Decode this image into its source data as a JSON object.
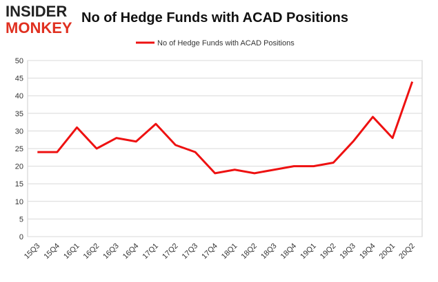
{
  "logo": {
    "top": "INSIDER",
    "bottom": "MONKEY"
  },
  "chart_data": {
    "type": "line",
    "title": "No of Hedge Funds with ACAD Positions",
    "categories": [
      "15Q3",
      "15Q4",
      "16Q1",
      "16Q2",
      "16Q3",
      "16Q4",
      "17Q1",
      "17Q2",
      "17Q3",
      "17Q4",
      "18Q1",
      "18Q2",
      "18Q3",
      "18Q4",
      "19Q1",
      "19Q2",
      "19Q3",
      "19Q4",
      "20Q1",
      "20Q2"
    ],
    "series": [
      {
        "name": "No of Hedge Funds with ACAD Positions",
        "color": "#ee1111",
        "values": [
          24,
          24,
          31,
          25,
          28,
          27,
          32,
          26,
          24,
          18,
          19,
          18,
          19,
          20,
          20,
          21,
          27,
          34,
          28,
          44
        ]
      }
    ],
    "ylim": [
      0,
      50
    ],
    "yticks": [
      0,
      5,
      10,
      15,
      20,
      25,
      30,
      35,
      40,
      45,
      50
    ],
    "grid": true,
    "legend": "top"
  }
}
